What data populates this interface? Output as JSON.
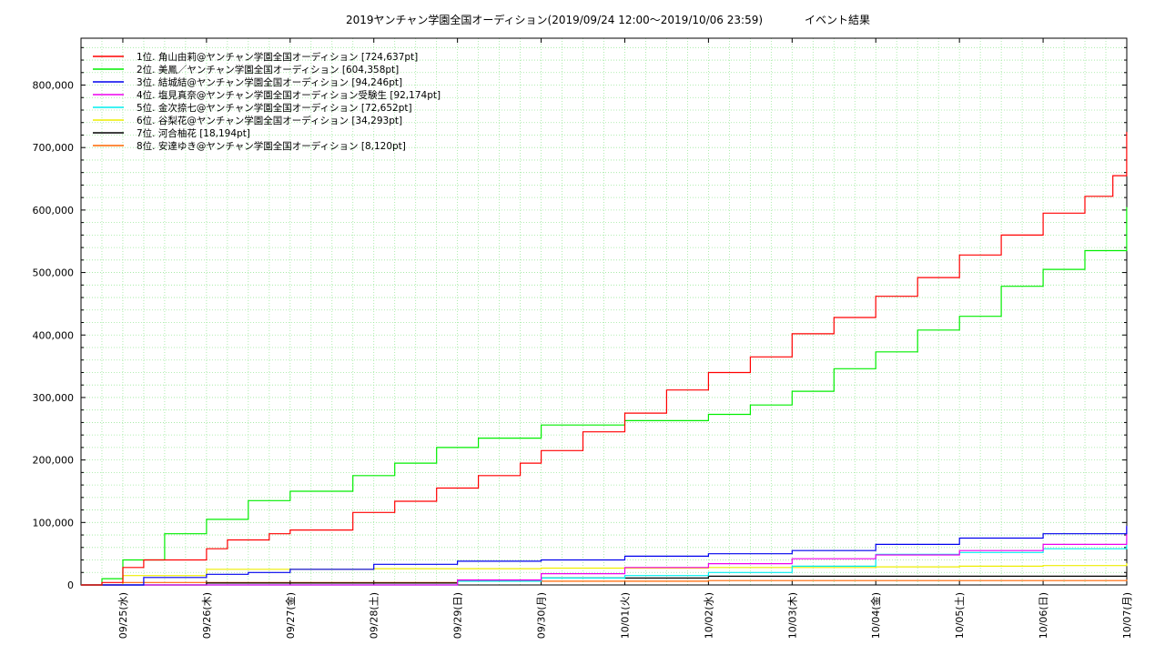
{
  "chart_data": {
    "type": "line",
    "step": true,
    "title": "2019ヤンチャン学園全国オーディション(2019/09/24 12:00〜2019/10/06 23:59)",
    "title_suffix": "イベント結果",
    "xlabel": "",
    "ylabel": "",
    "ylim": [
      0,
      875000
    ],
    "xlim": [
      "2019-09-24 12:00",
      "2019-10-07 00:00"
    ],
    "y_ticks": [
      0,
      100000,
      200000,
      300000,
      400000,
      500000,
      600000,
      700000,
      800000
    ],
    "y_tick_labels": [
      "0",
      "100,000",
      "200,000",
      "300,000",
      "400,000",
      "500,000",
      "600,000",
      "700,000",
      "800,000"
    ],
    "x_ticks": [
      "2019-09-25",
      "2019-09-26",
      "2019-09-27",
      "2019-09-28",
      "2019-09-29",
      "2019-09-30",
      "2019-10-01",
      "2019-10-02",
      "2019-10-03",
      "2019-10-04",
      "2019-10-05",
      "2019-10-06",
      "2019-10-07"
    ],
    "x_tick_labels": [
      "09/25(水)",
      "09/26(木)",
      "09/27(金)",
      "09/28(土)",
      "09/29(日)",
      "09/30(月)",
      "10/01(火)",
      "10/02(水)",
      "10/03(木)",
      "10/04(金)",
      "10/05(土)",
      "10/06(日)",
      "10/07(月)"
    ],
    "grid": true,
    "legend_position": "top-left",
    "series": [
      {
        "name": "1位. 角山由莉@ヤンチャン学園全国オーディション [724,637pt]",
        "color": "#ff0000",
        "x": [
          "2019-09-24 12:00",
          "2019-09-24 18:00",
          "2019-09-25 00:00",
          "2019-09-25 06:00",
          "2019-09-26 00:00",
          "2019-09-26 06:00",
          "2019-09-26 18:00",
          "2019-09-27 00:00",
          "2019-09-27 18:00",
          "2019-09-28 06:00",
          "2019-09-28 18:00",
          "2019-09-29 06:00",
          "2019-09-29 18:00",
          "2019-09-30 00:00",
          "2019-09-30 12:00",
          "2019-10-01 00:00",
          "2019-10-01 12:00",
          "2019-10-02 00:00",
          "2019-10-02 12:00",
          "2019-10-03 00:00",
          "2019-10-03 12:00",
          "2019-10-04 00:00",
          "2019-10-04 12:00",
          "2019-10-05 00:00",
          "2019-10-05 12:00",
          "2019-10-06 00:00",
          "2019-10-06 12:00",
          "2019-10-06 20:00",
          "2019-10-06 23:59"
        ],
        "y": [
          0,
          4000,
          28000,
          40000,
          58000,
          72000,
          82000,
          88000,
          116000,
          134000,
          155000,
          175000,
          195000,
          215000,
          245000,
          275000,
          312000,
          340000,
          365000,
          402000,
          428000,
          462000,
          492000,
          528000,
          560000,
          595000,
          622000,
          655000,
          724637
        ]
      },
      {
        "name": "2位. 美鳳／ヤンチャン学園全国オーディション [604,358pt]",
        "color": "#00ee00",
        "x": [
          "2019-09-24 12:00",
          "2019-09-24 18:00",
          "2019-09-25 00:00",
          "2019-09-25 12:00",
          "2019-09-26 00:00",
          "2019-09-26 12:00",
          "2019-09-27 00:00",
          "2019-09-27 18:00",
          "2019-09-28 06:00",
          "2019-09-28 18:00",
          "2019-09-29 06:00",
          "2019-09-30 00:00",
          "2019-10-01 00:00",
          "2019-10-02 00:00",
          "2019-10-02 12:00",
          "2019-10-03 00:00",
          "2019-10-03 12:00",
          "2019-10-04 00:00",
          "2019-10-04 12:00",
          "2019-10-05 00:00",
          "2019-10-05 12:00",
          "2019-10-06 00:00",
          "2019-10-06 12:00",
          "2019-10-06 23:59"
        ],
        "y": [
          0,
          10000,
          40000,
          82000,
          105000,
          135000,
          150000,
          175000,
          195000,
          220000,
          235000,
          256000,
          263000,
          273000,
          288000,
          310000,
          346000,
          373000,
          408000,
          430000,
          478000,
          505000,
          535000,
          604358
        ]
      },
      {
        "name": "3位. 結城結@ヤンチャン学園全国オーディション [94,246pt]",
        "color": "#0000ee",
        "x": [
          "2019-09-24 12:00",
          "2019-09-25 06:00",
          "2019-09-26 00:00",
          "2019-09-26 12:00",
          "2019-09-27 00:00",
          "2019-09-28 00:00",
          "2019-09-29 00:00",
          "2019-09-30 00:00",
          "2019-10-01 00:00",
          "2019-10-02 00:00",
          "2019-10-03 00:00",
          "2019-10-04 00:00",
          "2019-10-05 00:00",
          "2019-10-06 00:00",
          "2019-10-06 23:59"
        ],
        "y": [
          0,
          12000,
          17000,
          20000,
          25000,
          33000,
          38000,
          40000,
          46000,
          50000,
          55000,
          65000,
          75000,
          82000,
          94246
        ]
      },
      {
        "name": "4位. 塩見真奈@ヤンチャン学園全国オーディション受験生 [92,174pt]",
        "color": "#ee00ee",
        "x": [
          "2019-09-24 12:00",
          "2019-09-29 00:00",
          "2019-09-30 00:00",
          "2019-10-01 00:00",
          "2019-10-02 00:00",
          "2019-10-03 00:00",
          "2019-10-04 00:00",
          "2019-10-05 00:00",
          "2019-10-06 00:00",
          "2019-10-06 23:59"
        ],
        "y": [
          0,
          8000,
          18000,
          28000,
          34000,
          42000,
          48000,
          55000,
          65000,
          92174
        ]
      },
      {
        "name": "5位. 金次捺七@ヤンチャン学園全国オーディション [72,652pt]",
        "color": "#00eeee",
        "x": [
          "2019-09-24 12:00",
          "2019-09-29 00:00",
          "2019-09-30 00:00",
          "2019-10-01 00:00",
          "2019-10-02 00:00",
          "2019-10-03 00:00",
          "2019-10-04 00:00",
          "2019-10-05 00:00",
          "2019-10-06 00:00",
          "2019-10-06 23:59"
        ],
        "y": [
          0,
          6000,
          11000,
          15000,
          20000,
          30000,
          49000,
          52000,
          58000,
          72652
        ]
      },
      {
        "name": "6位. 谷梨花@ヤンチャン学園全国オーディション [34,293pt]",
        "color": "#eeee00",
        "x": [
          "2019-09-24 12:00",
          "2019-09-25 00:00",
          "2019-09-26 00:00",
          "2019-09-28 00:00",
          "2019-09-30 00:00",
          "2019-10-02 00:00",
          "2019-10-04 00:00",
          "2019-10-05 00:00",
          "2019-10-06 00:00",
          "2019-10-06 23:59"
        ],
        "y": [
          0,
          15000,
          25000,
          26000,
          27000,
          28000,
          29000,
          30000,
          31000,
          34293
        ]
      },
      {
        "name": "7位. 河合柚花 [18,194pt]",
        "color": "#000000",
        "x": [
          "2019-09-24 12:00",
          "2019-09-26 00:00",
          "2019-09-29 00:00",
          "2019-09-30 00:00",
          "2019-10-02 00:00",
          "2019-10-06 23:59"
        ],
        "y": [
          0,
          3000,
          6000,
          11000,
          14000,
          18194
        ]
      },
      {
        "name": "8位. 安達ゆき@ヤンチャン学園全国オーディション [8,120pt]",
        "color": "#ff6600",
        "x": [
          "2019-09-24 12:00",
          "2019-09-25 00:00",
          "2019-09-29 00:00",
          "2019-10-02 00:00",
          "2019-10-06 23:59"
        ],
        "y": [
          0,
          4000,
          6000,
          7000,
          8120
        ]
      }
    ]
  }
}
